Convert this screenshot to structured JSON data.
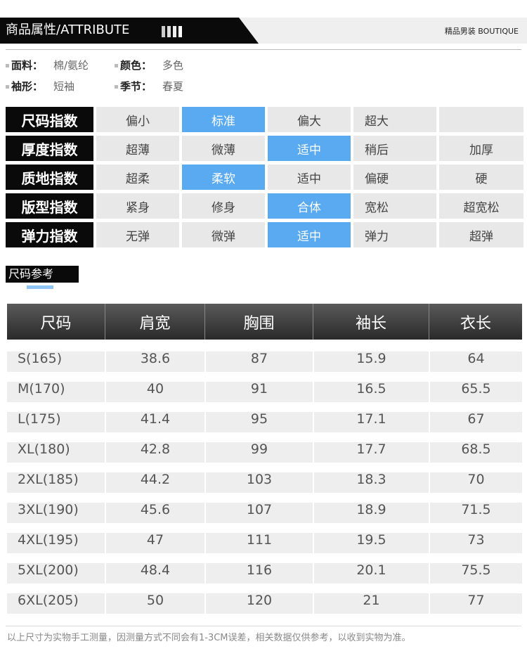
{
  "header": {
    "title": "商品属性/ATTRIBUTE",
    "tag": "精品男装 BOUTIQUE"
  },
  "attributes": [
    {
      "label": "面料：",
      "value": "棉/氨纶"
    },
    {
      "label": "颜色：",
      "value": "多色"
    },
    {
      "label": "袖形：",
      "value": "短袖"
    },
    {
      "label": "季节：",
      "value": "春夏"
    }
  ],
  "indices": [
    {
      "label": "尺码指数",
      "options": [
        "偏小",
        "标准",
        "偏大",
        "超大"
      ],
      "selected": 1
    },
    {
      "label": "厚度指数",
      "options": [
        "超薄",
        "微薄",
        "适中",
        "稍后",
        "加厚"
      ],
      "selected": 2
    },
    {
      "label": "质地指数",
      "options": [
        "超柔",
        "柔软",
        "适中",
        "偏硬",
        "硬"
      ],
      "selected": 1
    },
    {
      "label": "版型指数",
      "options": [
        "紧身",
        "修身",
        "合体",
        "宽松",
        "超宽松"
      ],
      "selected": 2
    },
    {
      "label": "弹力指数",
      "options": [
        "无弹",
        "微弹",
        "适中",
        "弹力",
        "超弹"
      ],
      "selected": 2
    }
  ],
  "size_reference": {
    "title": "尺码参考",
    "columns": [
      "尺码",
      "肩宽",
      "胸围",
      "袖长",
      "衣长"
    ],
    "rows": [
      [
        "S(165)",
        38.6,
        87,
        15.9,
        64
      ],
      [
        "M(170)",
        40,
        91,
        16.5,
        65.5
      ],
      [
        "L(175)",
        41.4,
        95,
        17.1,
        67
      ],
      [
        "XL(180)",
        42.8,
        99,
        17.7,
        68.5
      ],
      [
        "2XL(185)",
        44.2,
        103,
        18.3,
        70
      ],
      [
        "3XL(190)",
        45.6,
        107,
        18.9,
        71.5
      ],
      [
        "4XL(195)",
        47,
        111,
        19.5,
        73
      ],
      [
        "5XL(200)",
        48.4,
        116,
        20.1,
        75.5
      ],
      [
        "6XL(205)",
        50,
        120,
        21,
        77
      ]
    ]
  },
  "footnote": "以上尺寸为实物手工测量，因测量方式不同会有1-3CM误差，相关数据仅供参考，以收到实物为准。"
}
